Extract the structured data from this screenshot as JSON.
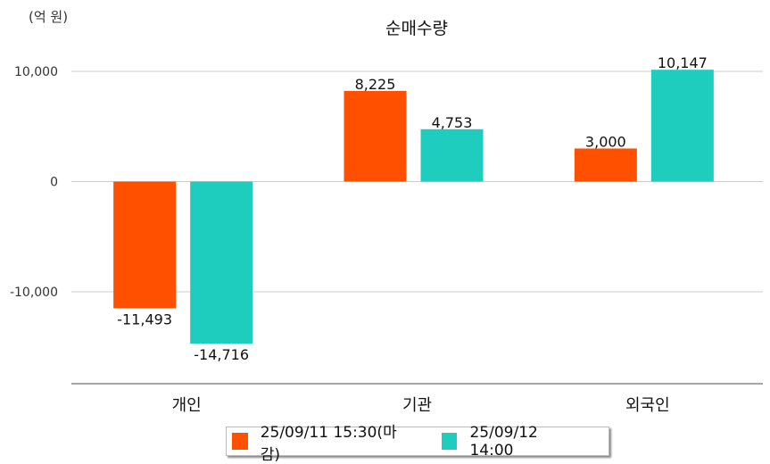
{
  "chart_data": {
    "type": "bar",
    "title": "순매수량",
    "unit_label": "(억 원)",
    "categories": [
      "개인",
      "기관",
      "외국인"
    ],
    "series": [
      {
        "name": "25/09/11 15:30(마감)",
        "color": "#FF5000",
        "values": [
          -11493,
          8225,
          3000
        ],
        "labels": [
          "-11,493",
          "8,225",
          "3,000"
        ]
      },
      {
        "name": "25/09/12 14:00",
        "color": "#1ECDBD",
        "values": [
          -14716,
          4753,
          10147
        ],
        "labels": [
          "-14,716",
          "4,753",
          "10,147"
        ]
      }
    ],
    "yticks": [
      10000,
      0,
      -10000
    ],
    "ytick_labels": [
      "10,000",
      "0",
      "-10,000"
    ],
    "ylim": [
      -18300,
      12000
    ],
    "grid": true,
    "legend": "bottom"
  }
}
